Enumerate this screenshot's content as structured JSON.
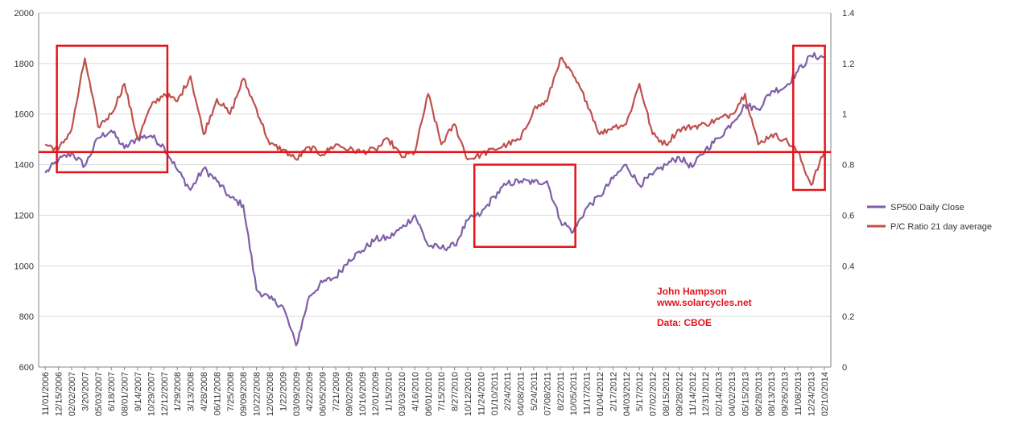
{
  "chart_data": {
    "type": "line",
    "x_dates": [
      "11/01/2006",
      "12/15/2006",
      "02/02/2007",
      "3/20/2007",
      "05/03/2007",
      "6/18/2007",
      "08/01/2007",
      "9/14/2007",
      "10/29/2007",
      "12/12/2007",
      "1/29/2008",
      "3/13/2008",
      "4/28/2008",
      "06/11/2008",
      "7/25/2008",
      "09/09/2008",
      "10/22/2008",
      "12/05/2008",
      "1/22/2009",
      "03/09/2009",
      "4/22/2009",
      "06/05/2009",
      "7/21/2009",
      "09/02/2009",
      "10/16/2009",
      "12/01/2009",
      "1/15/2010",
      "03/03/2010",
      "4/16/2010",
      "06/01/2010",
      "7/15/2010",
      "8/27/2010",
      "10/12/2010",
      "11/24/2010",
      "01/10/2011",
      "2/24/2011",
      "04/08/2011",
      "5/24/2011",
      "07/08/2011",
      "8/22/2011",
      "10/05/2011",
      "11/17/2011",
      "01/04/2012",
      "2/17/2012",
      "04/03/2012",
      "5/17/2012",
      "07/02/2012",
      "08/15/2012",
      "09/28/2012",
      "11/14/2012",
      "12/31/2012",
      "02/14/2013",
      "04/02/2013",
      "05/15/2013",
      "06/28/2013",
      "08/13/2013",
      "09/26/2013",
      "11/08/2013",
      "12/24/2013",
      "02/10/2014"
    ],
    "y_left": {
      "min": 600,
      "max": 2000,
      "ticks": [
        "600",
        "800",
        "1000",
        "1200",
        "1400",
        "1600",
        "1800",
        "2000"
      ]
    },
    "y_right": {
      "min": 0,
      "max": 1.4,
      "ticks": [
        "0",
        "0.2",
        "0.4",
        "0.6",
        "0.8",
        "1",
        "1.2",
        "1.4"
      ]
    },
    "series": [
      {
        "name": "SP500 Daily Close",
        "axis": "left",
        "color": "#7e5fa8",
        "values": [
          1367,
          1418,
          1445,
          1395,
          1505,
          1535,
          1465,
          1505,
          1515,
          1470,
          1380,
          1300,
          1385,
          1335,
          1270,
          1240,
          905,
          870,
          840,
          685,
          880,
          935,
          955,
          1025,
          1060,
          1105,
          1110,
          1150,
          1200,
          1080,
          1070,
          1080,
          1180,
          1205,
          1275,
          1325,
          1335,
          1330,
          1335,
          1180,
          1135,
          1230,
          1275,
          1345,
          1400,
          1320,
          1360,
          1400,
          1430,
          1390,
          1460,
          1505,
          1565,
          1635,
          1620,
          1690,
          1705,
          1770,
          1830,
          1825
        ]
      },
      {
        "name": "P/C Ratio 21 day average",
        "axis": "right",
        "color": "#c0504d",
        "values": [
          0.88,
          0.86,
          0.94,
          1.22,
          0.95,
          1.0,
          1.12,
          0.9,
          1.03,
          1.08,
          1.05,
          1.15,
          0.92,
          1.06,
          1.0,
          1.14,
          1.02,
          0.88,
          0.86,
          0.82,
          0.87,
          0.84,
          0.88,
          0.86,
          0.85,
          0.86,
          0.9,
          0.83,
          0.85,
          1.08,
          0.88,
          0.96,
          0.82,
          0.84,
          0.86,
          0.88,
          0.9,
          1.02,
          1.05,
          1.22,
          1.15,
          1.05,
          0.92,
          0.95,
          0.96,
          1.12,
          0.92,
          0.88,
          0.94,
          0.95,
          0.96,
          0.98,
          1.0,
          1.08,
          0.88,
          0.92,
          0.9,
          0.85,
          0.72,
          0.85
        ]
      }
    ],
    "reference_line": {
      "axis": "right",
      "value": 0.85,
      "color": "#e3141a"
    },
    "highlight_boxes": [
      {
        "x_start": 0.023,
        "x_end": 0.1625,
        "y_top": 1.27,
        "y_bottom": 0.77
      },
      {
        "x_start": 0.55,
        "x_end": 0.6775,
        "y_top": 0.8,
        "y_bottom": 0.475
      },
      {
        "x_start": 0.9525,
        "x_end": 0.9925,
        "y_top": 1.27,
        "y_bottom": 0.7
      }
    ],
    "legend_position": "right",
    "grid": true,
    "annotations": {
      "author": "John Hampson",
      "site": "www.solarcycles.net",
      "source": "Data: CBOE"
    }
  }
}
